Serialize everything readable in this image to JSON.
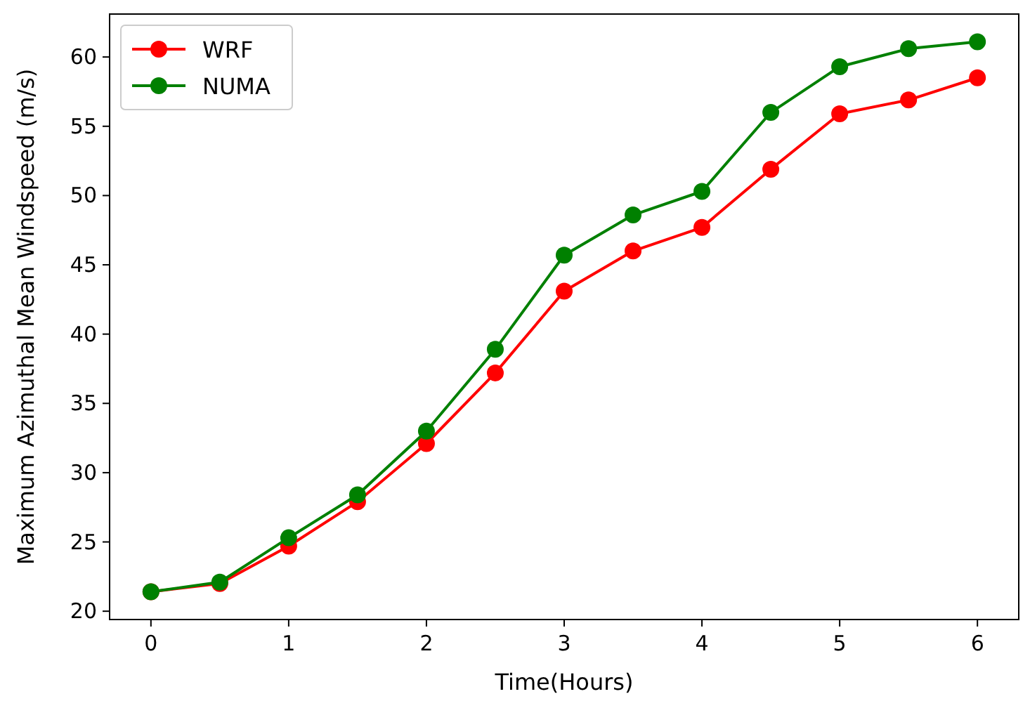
{
  "chart_data": {
    "type": "line",
    "xlabel": "Time(Hours)",
    "ylabel": "Maximum Azimuthal Mean Windspeed (m/s)",
    "x": [
      0,
      0.5,
      1,
      1.5,
      2,
      2.5,
      3,
      3.5,
      4,
      4.5,
      5,
      5.5,
      6
    ],
    "series": [
      {
        "name": "WRF",
        "color": "#ff0000",
        "values": [
          21.4,
          22.0,
          24.7,
          27.9,
          32.1,
          37.2,
          43.1,
          46.0,
          47.7,
          51.9,
          55.9,
          56.9,
          58.5
        ]
      },
      {
        "name": "NUMA",
        "color": "#008000",
        "values": [
          21.4,
          22.1,
          25.3,
          28.4,
          33.0,
          38.9,
          45.7,
          48.6,
          50.3,
          56.0,
          59.3,
          60.6,
          61.1
        ]
      }
    ],
    "xlim": [
      -0.3,
      6.3
    ],
    "ylim": [
      19.4,
      63.1
    ],
    "xticks": [
      0,
      1,
      2,
      3,
      4,
      5,
      6
    ],
    "yticks": [
      20,
      25,
      30,
      35,
      40,
      45,
      50,
      55,
      60
    ],
    "grid": false,
    "legend": "top left",
    "marker": "circle",
    "line_style": "solid"
  }
}
